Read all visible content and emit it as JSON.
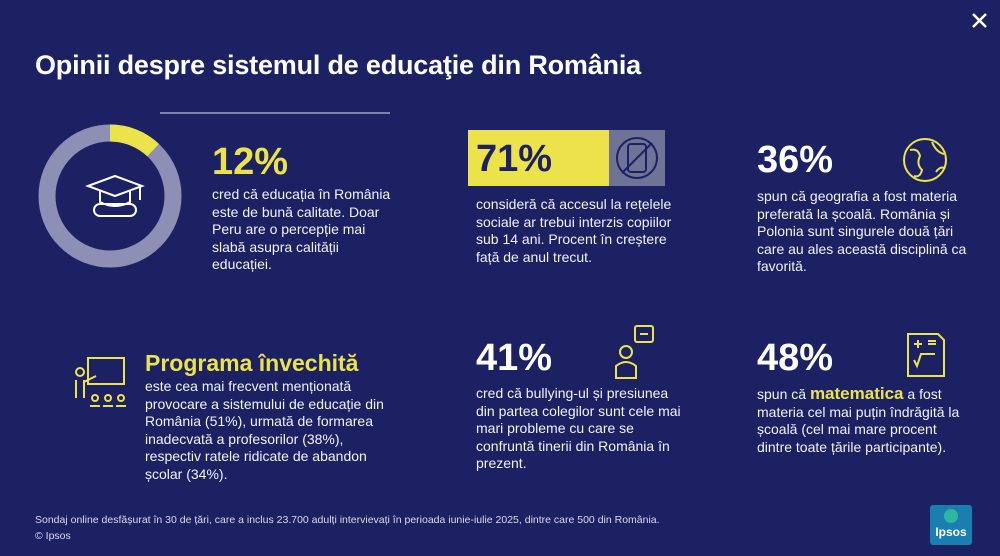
{
  "header": {
    "title": "Opinii despre sistemul de educaţie din România"
  },
  "stats": [
    {
      "value": 12,
      "value_label": "12%",
      "text": "cred că educația în România este de bună calitate. Doar Peru are o percepție mai slabă asupra calității educației."
    },
    {
      "value_label": "71%",
      "text": "consideră că accesul la rețelele sociale ar trebui interzis copiilor sub 14 ani. Procent în creștere față de anul trecut."
    },
    {
      "value_label": "36%",
      "text": "spun că geografia a fost materia preferată la școală. România și Polonia sunt singurele două țări care au ales această disciplină ca favorită."
    },
    {
      "heading": "Programa învechită",
      "text": "este cea mai frecvent menționată provocare a sistemului de educație din România (51%), urmată de formarea inadecvată a profesorilor (38%), respectiv ratele ridicate de abandon școlar (34%)."
    },
    {
      "value_label": "41%",
      "text": "cred că bullying-ul și presiunea din partea colegilor sunt cele mai mari probleme cu care se confruntă tinerii din România în prezent."
    },
    {
      "value_label": "48%",
      "text_before": "spun că",
      "highlight": "matematica",
      "text_after": "a fost materia cel mai puțin îndrăgită la școală (cel mai mare procent dintre toate țările participante)."
    }
  ],
  "footer": {
    "note": "Sondaj online desfășurat în 30 de țări, care a inclus 23.700 adulți intervievați în perioada iunie-iulie 2025, dintre care 500 din România.",
    "copyright": "© Ipsos",
    "logo": "Ipsos"
  }
}
